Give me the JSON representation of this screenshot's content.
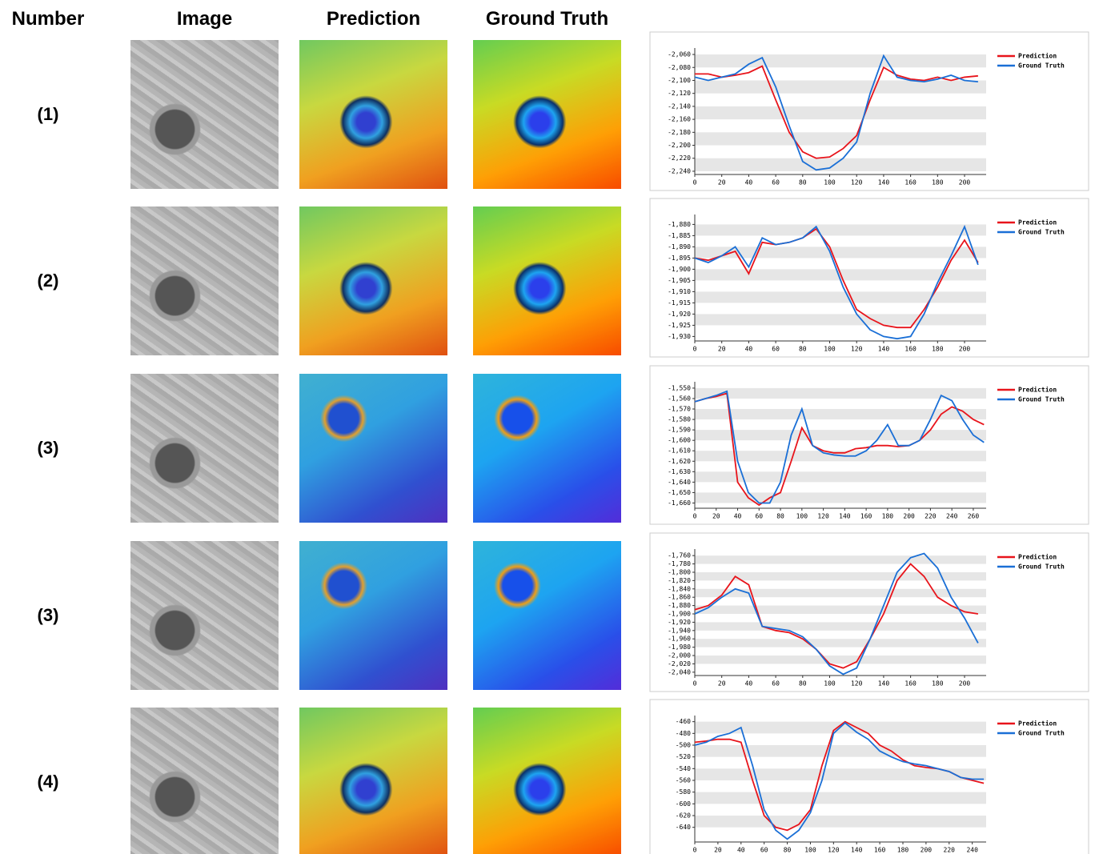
{
  "header": {
    "columns": [
      "Number",
      "Image",
      "Prediction",
      "Ground Truth"
    ]
  },
  "rows": [
    {
      "number": "(1)"
    },
    {
      "number": "(2)"
    },
    {
      "number": "(3)"
    },
    {
      "number": "(3)"
    },
    {
      "number": "(4)"
    }
  ],
  "chart_data": [
    {
      "type": "line",
      "grid": true,
      "legend": "upper right",
      "x": [
        0,
        10,
        20,
        30,
        40,
        50,
        60,
        70,
        80,
        90,
        100,
        110,
        120,
        130,
        140,
        150,
        160,
        170,
        180,
        190,
        200,
        210
      ],
      "series": [
        {
          "name": "Prediction",
          "color": "#e8141b",
          "values": [
            -2090,
            -2090,
            -2095,
            -2092,
            -2088,
            -2078,
            -2130,
            -2180,
            -2210,
            -2220,
            -2218,
            -2205,
            -2185,
            -2130,
            -2080,
            -2092,
            -2098,
            -2100,
            -2095,
            -2100,
            -2095,
            -2093
          ]
        },
        {
          "name": "Ground Truth",
          "color": "#1a6fd6",
          "values": [
            -2095,
            -2100,
            -2095,
            -2090,
            -2075,
            -2065,
            -2110,
            -2170,
            -2225,
            -2238,
            -2235,
            -2220,
            -2195,
            -2120,
            -2062,
            -2095,
            -2100,
            -2102,
            -2098,
            -2092,
            -2100,
            -2102
          ]
        }
      ],
      "xlim": [
        0,
        216
      ],
      "xticks": [
        0,
        20,
        40,
        60,
        80,
        100,
        120,
        140,
        160,
        180,
        200
      ],
      "ylim": [
        -2245,
        -2055
      ],
      "yticks": [
        {
          "value": -2060,
          "label": "-2,060"
        },
        {
          "value": -2080,
          "label": "-2,080"
        },
        {
          "value": -2100,
          "label": "-2,100"
        },
        {
          "value": -2120,
          "label": "-2,120"
        },
        {
          "value": -2140,
          "label": "-2,140"
        },
        {
          "value": -2160,
          "label": "-2,160"
        },
        {
          "value": -2180,
          "label": "-2,180"
        },
        {
          "value": -2200,
          "label": "-2,200"
        },
        {
          "value": -2220,
          "label": "-2,220"
        },
        {
          "value": -2240,
          "label": "-2,240"
        }
      ]
    },
    {
      "type": "line",
      "grid": true,
      "legend": "upper right",
      "x": [
        0,
        10,
        20,
        30,
        40,
        50,
        60,
        70,
        80,
        90,
        100,
        110,
        120,
        130,
        140,
        150,
        160,
        170,
        180,
        190,
        200,
        210
      ],
      "series": [
        {
          "name": "Prediction",
          "color": "#e8141b",
          "values": [
            -1895,
            -1896,
            -1894,
            -1892,
            -1902,
            -1888,
            -1889,
            -1888,
            -1886,
            -1882,
            -1890,
            -1905,
            -1918,
            -1922,
            -1925,
            -1926,
            -1926,
            -1918,
            -1908,
            -1896,
            -1887,
            -1897
          ]
        },
        {
          "name": "Ground Truth",
          "color": "#1a6fd6",
          "values": [
            -1895,
            -1897,
            -1894,
            -1890,
            -1899,
            -1886,
            -1889,
            -1888,
            -1886,
            -1881,
            -1892,
            -1908,
            -1920,
            -1927,
            -1930,
            -1931,
            -1930,
            -1920,
            -1906,
            -1894,
            -1881,
            -1898
          ]
        }
      ],
      "xlim": [
        0,
        216
      ],
      "xticks": [
        0,
        20,
        40,
        60,
        80,
        100,
        120,
        140,
        160,
        180,
        200
      ],
      "ylim": [
        -1932,
        -1877
      ],
      "yticks": [
        {
          "value": -1880,
          "label": "-1,880"
        },
        {
          "value": -1885,
          "label": "-1,885"
        },
        {
          "value": -1890,
          "label": "-1,890"
        },
        {
          "value": -1895,
          "label": "-1,895"
        },
        {
          "value": -1900,
          "label": "-1,900"
        },
        {
          "value": -1905,
          "label": "-1,905"
        },
        {
          "value": -1910,
          "label": "-1,910"
        },
        {
          "value": -1915,
          "label": "-1,915"
        },
        {
          "value": -1920,
          "label": "-1,920"
        },
        {
          "value": -1925,
          "label": "-1,925"
        },
        {
          "value": -1930,
          "label": "-1,930"
        }
      ]
    },
    {
      "type": "line",
      "grid": true,
      "legend": "upper right",
      "x": [
        0,
        10,
        20,
        30,
        40,
        50,
        60,
        70,
        80,
        90,
        100,
        110,
        120,
        130,
        140,
        150,
        160,
        170,
        180,
        190,
        200,
        210,
        220,
        230,
        240,
        250,
        260,
        270
      ],
      "series": [
        {
          "name": "Prediction",
          "color": "#e8141b",
          "values": [
            -1563,
            -1560,
            -1558,
            -1555,
            -1640,
            -1655,
            -1662,
            -1655,
            -1650,
            -1620,
            -1588,
            -1605,
            -1610,
            -1612,
            -1612,
            -1608,
            -1607,
            -1605,
            -1605,
            -1606,
            -1605,
            -1600,
            -1590,
            -1575,
            -1568,
            -1572,
            -1580,
            -1585
          ]
        },
        {
          "name": "Ground Truth",
          "color": "#1a6fd6",
          "values": [
            -1563,
            -1560,
            -1557,
            -1553,
            -1620,
            -1650,
            -1660,
            -1660,
            -1640,
            -1595,
            -1570,
            -1605,
            -1612,
            -1614,
            -1615,
            -1615,
            -1610,
            -1600,
            -1585,
            -1605,
            -1605,
            -1600,
            -1580,
            -1557,
            -1562,
            -1580,
            -1595,
            -1602
          ]
        }
      ],
      "xlim": [
        0,
        272
      ],
      "xticks": [
        0,
        20,
        40,
        60,
        80,
        100,
        120,
        140,
        160,
        180,
        200,
        220,
        240,
        260
      ],
      "ylim": [
        -1665,
        -1547
      ],
      "yticks": [
        {
          "value": -1550,
          "label": "-1,550"
        },
        {
          "value": -1560,
          "label": "-1,560"
        },
        {
          "value": -1570,
          "label": "-1,570"
        },
        {
          "value": -1580,
          "label": "-1,580"
        },
        {
          "value": -1590,
          "label": "-1,590"
        },
        {
          "value": -1600,
          "label": "-1,600"
        },
        {
          "value": -1610,
          "label": "-1,610"
        },
        {
          "value": -1620,
          "label": "-1,620"
        },
        {
          "value": -1630,
          "label": "-1,630"
        },
        {
          "value": -1640,
          "label": "-1,640"
        },
        {
          "value": -1650,
          "label": "-1,650"
        },
        {
          "value": -1660,
          "label": "-1,660"
        }
      ]
    },
    {
      "type": "line",
      "grid": true,
      "legend": "upper right",
      "x": [
        0,
        10,
        20,
        30,
        40,
        50,
        60,
        70,
        80,
        90,
        100,
        110,
        120,
        130,
        140,
        150,
        160,
        170,
        180,
        190,
        200,
        210
      ],
      "series": [
        {
          "name": "Prediction",
          "color": "#e8141b",
          "values": [
            -1890,
            -1880,
            -1855,
            -1810,
            -1830,
            -1930,
            -1940,
            -1945,
            -1960,
            -1985,
            -2020,
            -2030,
            -2015,
            -1960,
            -1900,
            -1820,
            -1780,
            -1810,
            -1860,
            -1880,
            -1895,
            -1900
          ]
        },
        {
          "name": "Ground Truth",
          "color": "#1a6fd6",
          "values": [
            -1900,
            -1885,
            -1860,
            -1840,
            -1850,
            -1930,
            -1935,
            -1940,
            -1955,
            -1985,
            -2025,
            -2045,
            -2030,
            -1960,
            -1880,
            -1800,
            -1765,
            -1755,
            -1790,
            -1860,
            -1910,
            -1970
          ]
        }
      ],
      "xlim": [
        0,
        216
      ],
      "xticks": [
        0,
        20,
        40,
        60,
        80,
        100,
        120,
        140,
        160,
        180,
        200
      ],
      "ylim": [
        -2048,
        -1752
      ],
      "yticks": [
        {
          "value": -1760,
          "label": "-1,760"
        },
        {
          "value": -1780,
          "label": "-1,780"
        },
        {
          "value": -1800,
          "label": "-1,800"
        },
        {
          "value": -1820,
          "label": "-1,820"
        },
        {
          "value": -1840,
          "label": "-1,840"
        },
        {
          "value": -1860,
          "label": "-1,860"
        },
        {
          "value": -1880,
          "label": "-1,880"
        },
        {
          "value": -1900,
          "label": "-1,900"
        },
        {
          "value": -1920,
          "label": "-1,920"
        },
        {
          "value": -1940,
          "label": "-1,940"
        },
        {
          "value": -1960,
          "label": "-1,960"
        },
        {
          "value": -1980,
          "label": "-1,980"
        },
        {
          "value": -2000,
          "label": "-2,000"
        },
        {
          "value": -2020,
          "label": "-2,020"
        },
        {
          "value": -2040,
          "label": "-2,040"
        }
      ]
    },
    {
      "type": "line",
      "grid": true,
      "legend": "upper right",
      "x": [
        0,
        10,
        20,
        30,
        40,
        50,
        60,
        70,
        80,
        90,
        100,
        110,
        120,
        130,
        140,
        150,
        160,
        170,
        180,
        190,
        200,
        210,
        220,
        230,
        240,
        250
      ],
      "series": [
        {
          "name": "Prediction",
          "color": "#e8141b",
          "values": [
            -495,
            -493,
            -490,
            -490,
            -495,
            -560,
            -620,
            -640,
            -645,
            -635,
            -610,
            -535,
            -475,
            -460,
            -470,
            -480,
            -500,
            -510,
            -525,
            -535,
            -538,
            -540,
            -545,
            -555,
            -560,
            -565
          ]
        },
        {
          "name": "Ground Truth",
          "color": "#1a6fd6",
          "values": [
            -500,
            -495,
            -485,
            -480,
            -470,
            -535,
            -610,
            -645,
            -660,
            -645,
            -615,
            -560,
            -480,
            -462,
            -478,
            -490,
            -510,
            -520,
            -528,
            -532,
            -535,
            -540,
            -545,
            -555,
            -558,
            -558
          ]
        }
      ],
      "xlim": [
        0,
        252
      ],
      "xticks": [
        0,
        20,
        40,
        60,
        80,
        100,
        120,
        140,
        160,
        180,
        200,
        220,
        240
      ],
      "ylim": [
        -665,
        -455
      ],
      "yticks": [
        -460,
        -480,
        -500,
        -520,
        -540,
        -560,
        -580,
        -600,
        -620,
        -640
      ]
    }
  ]
}
